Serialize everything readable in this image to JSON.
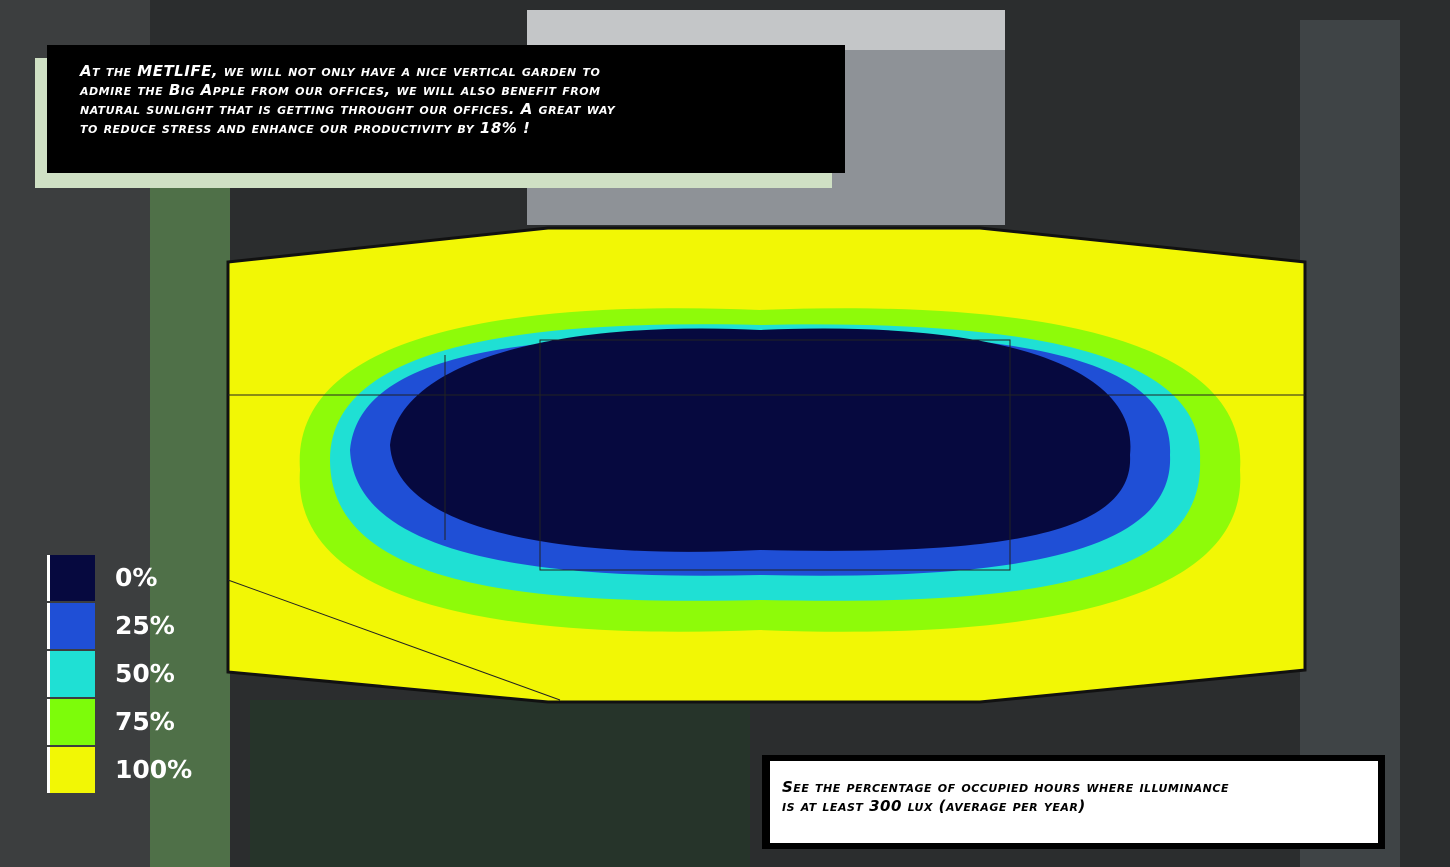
{
  "callout_top": {
    "lines": [
      "At the METLIFE, we will not only have a nice vertical garden to",
      "admire the Big Apple from our offices, we will also benefit from",
      "natural sunlight that is getting throught our offices. A great way",
      "to reduce stress and enhance our productivity by 18% !"
    ]
  },
  "legend": {
    "items": [
      {
        "label": "0%",
        "color": "#06093f"
      },
      {
        "label": "25%",
        "color": "#1f4fd6"
      },
      {
        "label": "50%",
        "color": "#1fe0d4"
      },
      {
        "label": "75%",
        "color": "#7dfc0a"
      },
      {
        "label": "100%",
        "color": "#f2f705"
      }
    ]
  },
  "callout_bottom": {
    "lines": [
      "See the percentage of occupied hours where illuminance",
      "is at least 300 lux (average per year)"
    ]
  }
}
